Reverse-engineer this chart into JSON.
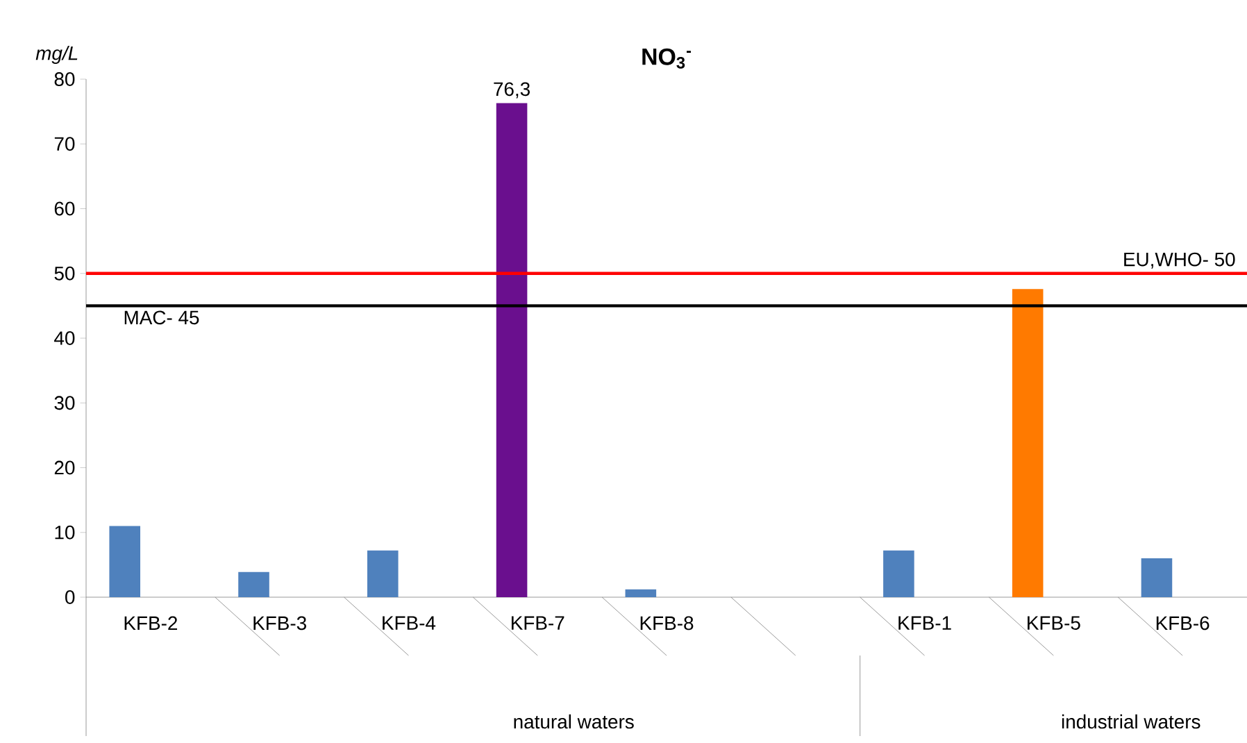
{
  "chart_data": {
    "type": "bar",
    "title": "NO$_{3}$$^{-}$",
    "ylabel": "mg/L",
    "categories": [
      "KFB-2",
      "KFB-3",
      "KFB-4",
      "KFB-7",
      "KFB-8",
      null,
      "KFB-1",
      "KFB-5",
      "KFB-6"
    ],
    "values": [
      11,
      3.9,
      7.2,
      76.3,
      1.2,
      null,
      7.2,
      47.6,
      6.0
    ],
    "colors": [
      "#4f81bd",
      "#4f81bd",
      "#4f81bd",
      "#6a0f8e",
      "#4f81bd",
      "#4f81bd",
      "#4f81bd",
      "#ff7a00",
      "#4f81bd"
    ],
    "value_labels": [
      null,
      null,
      null,
      "76,3",
      null,
      null,
      null,
      null,
      null
    ],
    "ylim": [
      0,
      80
    ],
    "yticks": [
      0,
      10,
      20,
      30,
      40,
      50,
      60,
      70,
      80
    ],
    "ref_lines": [
      {
        "axis": "y",
        "value": 50,
        "label": "EU,WHO- 50",
        "color": "#ff0000"
      },
      {
        "axis": "y",
        "value": 45,
        "label": "MAC- 45",
        "color": "#000000"
      }
    ],
    "annotations": [
      "natural waters",
      "industrial waters"
    ],
    "grid": false
  }
}
